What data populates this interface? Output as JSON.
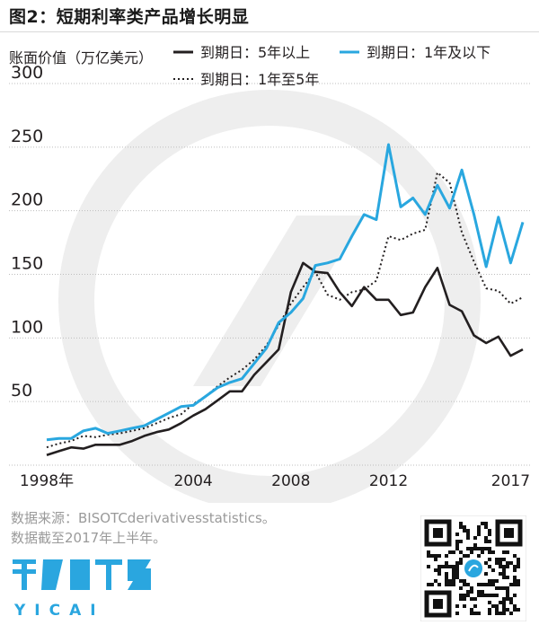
{
  "header": {
    "title": "图2：短期利率类产品增长明显"
  },
  "footer": {
    "source_line1": "数据来源：BISOTCderivativesstatistics。",
    "source_line2": "数据截至2017年上半年。",
    "logo_text": "第一财经",
    "logo_sub": "YICAI"
  },
  "colors": {
    "long_term": "#231f20",
    "short_term": "#29a7df",
    "mid_term": "#231f20",
    "grid": "#bdbdbd",
    "watermark": "#eeeeee"
  },
  "chart_data": {
    "type": "line",
    "title": "",
    "ylabel": "账面价值（万亿美元）",
    "xlabel": "",
    "ylim": [
      0,
      300
    ],
    "xlim": [
      1998,
      2017.5
    ],
    "yticks": [
      50,
      100,
      150,
      200,
      250,
      300
    ],
    "xticks": [
      {
        "value": 1998,
        "label": "1998年"
      },
      {
        "value": 2004,
        "label": "2004"
      },
      {
        "value": 2008,
        "label": "2008"
      },
      {
        "value": 2012,
        "label": "2012"
      },
      {
        "value": 2017,
        "label": "2017"
      }
    ],
    "grid": true,
    "legend_position": "top",
    "series": [
      {
        "name": "到期日：5年以上",
        "style": "solid",
        "color": "#231f20",
        "x": [
          1998,
          1998.5,
          1999,
          1999.5,
          2000,
          2000.5,
          2001,
          2001.5,
          2002,
          2002.5,
          2003,
          2003.5,
          2004,
          2004.5,
          2005,
          2005.5,
          2006,
          2006.5,
          2007,
          2007.5,
          2008,
          2008.5,
          2009,
          2009.5,
          2010,
          2010.5,
          2011,
          2011.5,
          2012,
          2012.5,
          2013,
          2013.5,
          2014,
          2014.5,
          2015,
          2015.5,
          2016,
          2016.5,
          2017,
          2017.5
        ],
        "values": [
          8,
          11,
          14,
          13,
          16,
          16,
          16,
          19,
          23,
          26,
          28,
          33,
          39,
          44,
          51,
          58,
          58,
          71,
          81,
          91,
          136,
          159,
          152,
          151,
          136,
          125,
          140,
          130,
          130,
          118,
          120,
          140,
          155,
          126,
          121,
          102,
          96,
          101,
          86,
          91
        ]
      },
      {
        "name": "到期日：1年及以下",
        "style": "solid",
        "color": "#29a7df",
        "x": [
          1998,
          1998.5,
          1999,
          1999.5,
          2000,
          2000.5,
          2001,
          2001.5,
          2002,
          2002.5,
          2003,
          2003.5,
          2004,
          2004.5,
          2005,
          2005.5,
          2006,
          2006.5,
          2007,
          2007.5,
          2008,
          2008.5,
          2009,
          2009.5,
          2010,
          2010.5,
          2011,
          2011.5,
          2012,
          2012.5,
          2013,
          2013.5,
          2014,
          2014.5,
          2015,
          2015.5,
          2016,
          2016.5,
          2017,
          2017.5
        ],
        "values": [
          20,
          21,
          21,
          27,
          29,
          25,
          27,
          29,
          31,
          36,
          41,
          46,
          47,
          54,
          61,
          65,
          68,
          80,
          92,
          112,
          120,
          131,
          157,
          159,
          162,
          180,
          197,
          193,
          252,
          203,
          210,
          197,
          220,
          202,
          232,
          197,
          156,
          195,
          159,
          191
        ]
      },
      {
        "name": "到期日：1年至5年",
        "style": "dotted",
        "color": "#231f20",
        "x": [
          1998,
          1998.5,
          1999,
          1999.5,
          2000,
          2000.5,
          2001,
          2001.5,
          2002,
          2002.5,
          2003,
          2003.5,
          2004,
          2004.5,
          2005,
          2005.5,
          2006,
          2006.5,
          2007,
          2007.5,
          2008,
          2008.5,
          2009,
          2009.5,
          2010,
          2010.5,
          2011,
          2011.5,
          2012,
          2012.5,
          2013,
          2013.5,
          2014,
          2014.5,
          2015,
          2015.5,
          2016,
          2016.5,
          2017,
          2017.5
        ],
        "values": [
          14,
          17,
          19,
          23,
          22,
          24,
          25,
          27,
          29,
          33,
          37,
          40,
          48,
          54,
          62,
          69,
          75,
          83,
          94,
          110,
          127,
          140,
          152,
          134,
          130,
          136,
          138,
          145,
          180,
          177,
          182,
          185,
          230,
          222,
          183,
          160,
          139,
          137,
          127,
          132
        ]
      }
    ]
  }
}
